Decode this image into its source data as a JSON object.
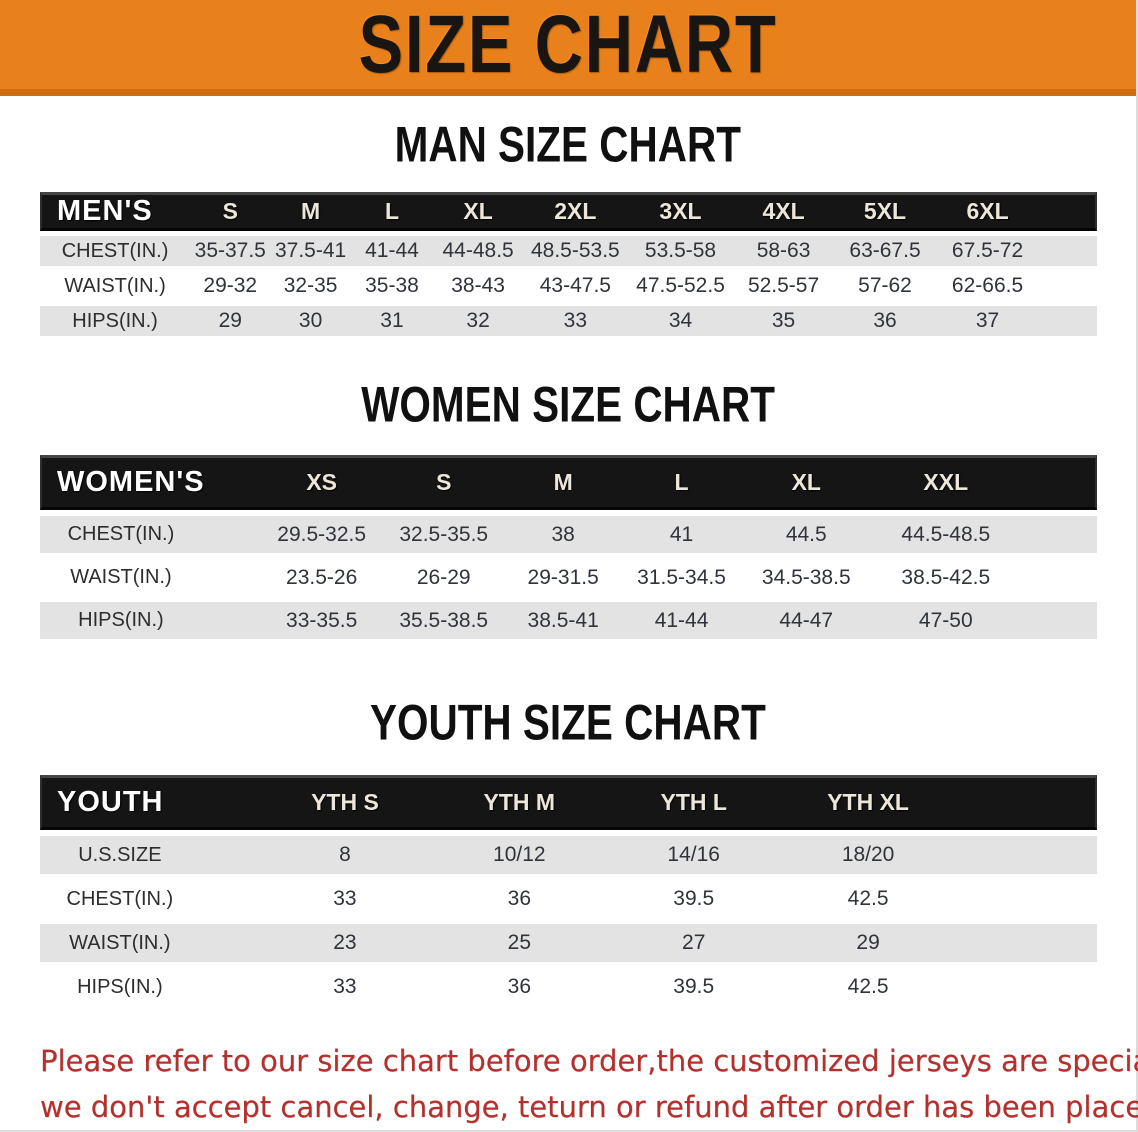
{
  "banner": {
    "title": "SIZE CHART"
  },
  "theme": {
    "banner_bg": "#e8801b",
    "banner_border": "#cf6c12",
    "header_bar": "#151515",
    "stripe": "#e3e3e3",
    "note_color": "#b3302d",
    "text": "#2d2d2d"
  },
  "sections": {
    "men": {
      "heading": "MAN SIZE CHART",
      "corner": "MEN'S",
      "sizes": [
        "S",
        "M",
        "L",
        "XL",
        "2XL",
        "3XL",
        "4XL",
        "5XL",
        "6XL"
      ],
      "rows": [
        {
          "label": "CHEST(IN.)",
          "values": [
            "35-37.5",
            "37.5-41",
            "41-44",
            "44-48.5",
            "48.5-53.5",
            "53.5-58",
            "58-63",
            "63-67.5",
            "67.5-72"
          ]
        },
        {
          "label": "WAIST(IN.)",
          "values": [
            "29-32",
            "32-35",
            "35-38",
            "38-43",
            "43-47.5",
            "47.5-52.5",
            "52.5-57",
            "57-62",
            "62-66.5"
          ]
        },
        {
          "label": "HIPS(IN.)",
          "values": [
            "29",
            "30",
            "31",
            "32",
            "33",
            "34",
            "35",
            "36",
            "37"
          ]
        }
      ]
    },
    "women": {
      "heading": "WOMEN SIZE CHART",
      "corner": "WOMEN'S",
      "sizes": [
        "XS",
        "S",
        "M",
        "L",
        "XL",
        "XXL"
      ],
      "rows": [
        {
          "label": "CHEST(IN.)",
          "values": [
            "29.5-32.5",
            "32.5-35.5",
            "38",
            "41",
            "44.5",
            "44.5-48.5"
          ]
        },
        {
          "label": "WAIST(IN.)",
          "values": [
            "23.5-26",
            "26-29",
            "29-31.5",
            "31.5-34.5",
            "34.5-38.5",
            "38.5-42.5"
          ]
        },
        {
          "label": "HIPS(IN.)",
          "values": [
            "33-35.5",
            "35.5-38.5",
            "38.5-41",
            "41-44",
            "44-47",
            "47-50"
          ]
        }
      ]
    },
    "youth": {
      "heading": "YOUTH SIZE CHART",
      "corner": "YOUTH",
      "sizes": [
        "YTH S",
        "YTH M",
        "YTH L",
        "YTH XL"
      ],
      "rows": [
        {
          "label": "U.S.SIZE",
          "values": [
            "8",
            "10/12",
            "14/16",
            "18/20"
          ]
        },
        {
          "label": "CHEST(IN.)",
          "values": [
            "33",
            "36",
            "39.5",
            "42.5"
          ]
        },
        {
          "label": "WAIST(IN.)",
          "values": [
            "23",
            "25",
            "27",
            "29"
          ]
        },
        {
          "label": "HIPS(IN.)",
          "values": [
            "33",
            "36",
            "39.5",
            "42.5"
          ]
        }
      ]
    }
  },
  "footer": {
    "line1": "Please refer to our size chart before order,the customized jerseys are special products,",
    "line2": "we don't accept cancel, change, teturn or refund after order has been placed!"
  }
}
